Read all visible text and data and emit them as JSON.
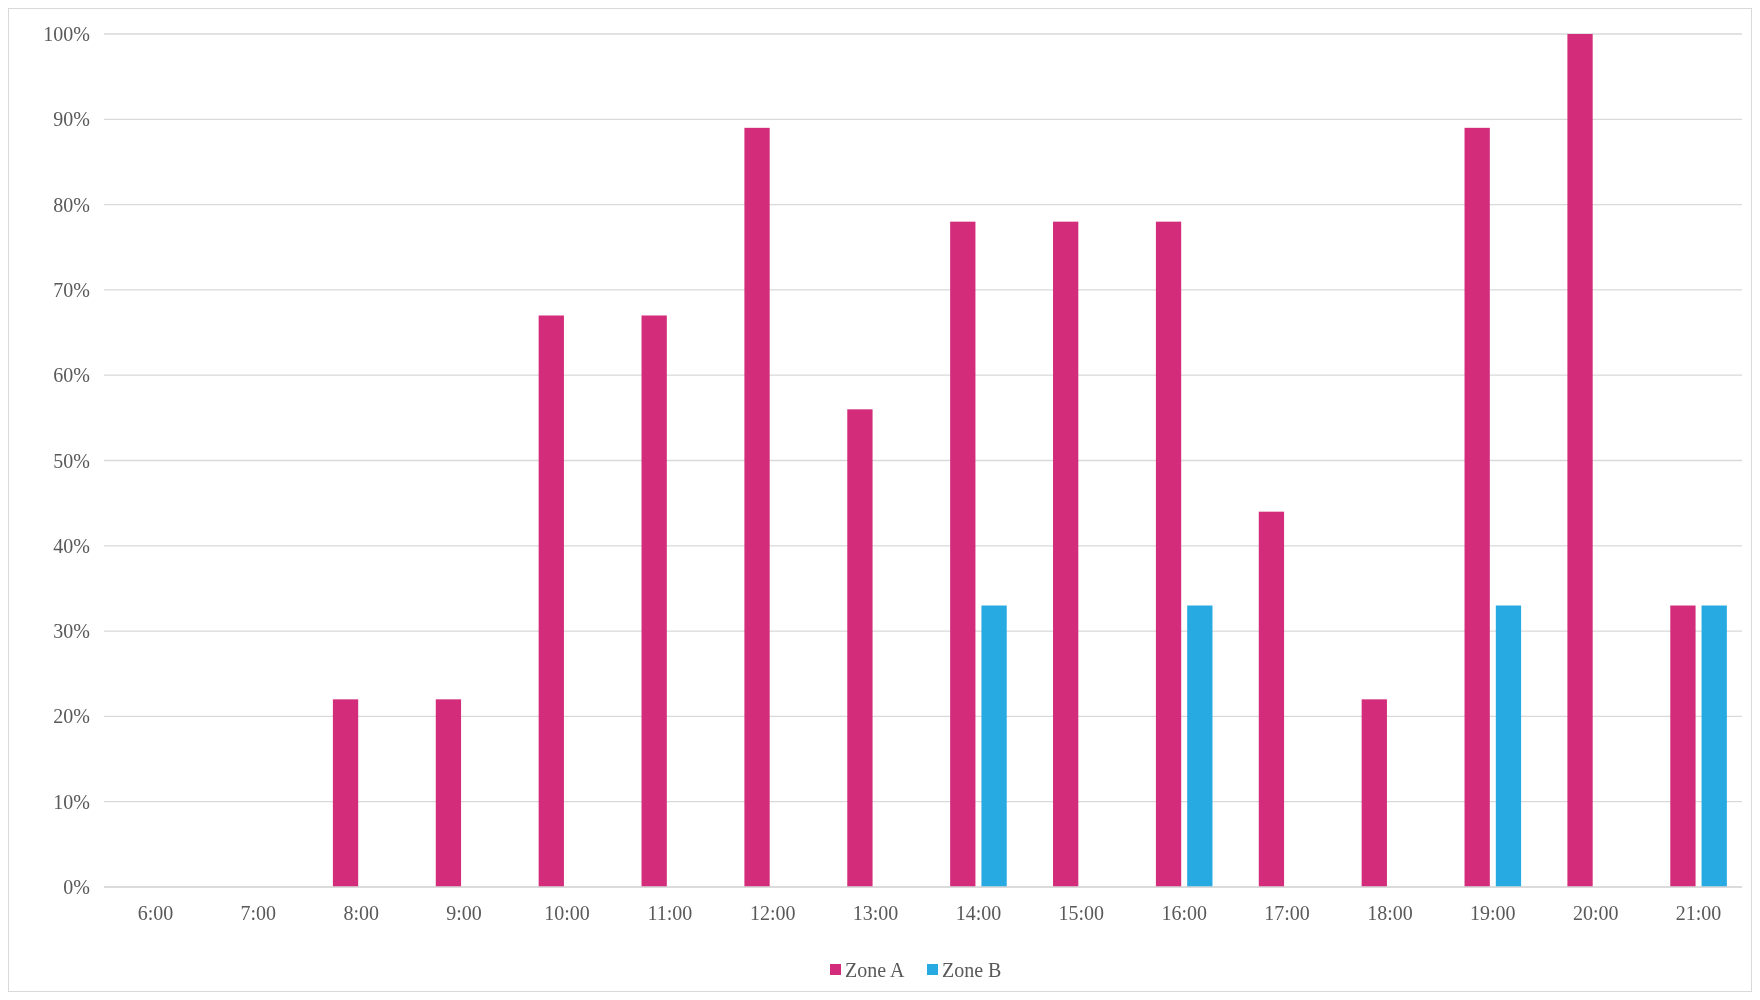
{
  "chart_data": {
    "type": "bar",
    "categories": [
      "6:00",
      "7:00",
      "8:00",
      "9:00",
      "10:00",
      "11:00",
      "12:00",
      "13:00",
      "14:00",
      "15:00",
      "16:00",
      "17:00",
      "18:00",
      "19:00",
      "20:00",
      "21:00"
    ],
    "series": [
      {
        "name": "Zone A",
        "color": "#d22c7b",
        "values": [
          0,
          0,
          22,
          22,
          67,
          67,
          89,
          56,
          78,
          78,
          78,
          44,
          22,
          89,
          100,
          33
        ]
      },
      {
        "name": "Zone B",
        "color": "#27a9e1",
        "values": [
          0,
          0,
          0,
          0,
          0,
          0,
          0,
          0,
          33,
          0,
          33,
          0,
          0,
          33,
          0,
          33
        ]
      }
    ],
    "ylim": [
      0,
      100
    ],
    "yticks": [
      {
        "value": 0,
        "label": "0%"
      },
      {
        "value": 10,
        "label": "10%"
      },
      {
        "value": 20,
        "label": "20%"
      },
      {
        "value": 30,
        "label": "30%"
      },
      {
        "value": 40,
        "label": "40%"
      },
      {
        "value": 50,
        "label": "50%"
      },
      {
        "value": 60,
        "label": "60%"
      },
      {
        "value": 70,
        "label": "70%"
      },
      {
        "value": 80,
        "label": "80%"
      },
      {
        "value": 90,
        "label": "90%"
      },
      {
        "value": 100,
        "label": "100%"
      }
    ],
    "grid": "y",
    "legend": "bottom"
  }
}
